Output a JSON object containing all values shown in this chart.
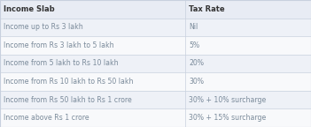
{
  "headers": [
    "Income Slab",
    "Tax Rate"
  ],
  "rows": [
    [
      "Income up to Rs 3 lakh",
      "Nil"
    ],
    [
      "Income from Rs 3 lakh to 5 lakh",
      "5%"
    ],
    [
      "Income from 5 lakh to Rs 10 lakh",
      "20%"
    ],
    [
      "Income from Rs 10 lakh to Rs 50 lakh",
      "30%"
    ],
    [
      "Income from Rs 50 lakh to Rs 1 crore",
      "30% + 10% surcharge"
    ],
    [
      "Income above Rs 1 crore",
      "30% + 15% surcharge"
    ]
  ],
  "header_bg": "#e8ecf4",
  "row_bg_odd": "#eef1f7",
  "row_bg_even": "#f8f9fb",
  "header_text_color": "#333333",
  "row_text_color": "#7a8a9a",
  "border_color": "#c8d0de",
  "col_split": 0.595,
  "header_fontsize": 6.0,
  "row_fontsize": 5.6,
  "fig_bg": "#eef1f7"
}
